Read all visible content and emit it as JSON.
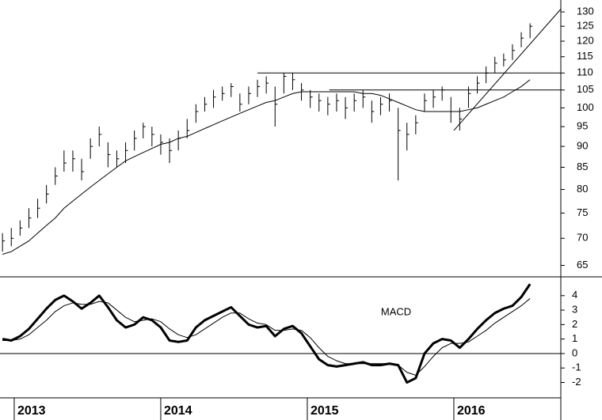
{
  "chart_data": [
    {
      "type": "ohlc",
      "log": true,
      "x": [
        2012.92,
        2012.98,
        2013.04,
        2013.1,
        2013.16,
        2013.22,
        2013.28,
        2013.34,
        2013.4,
        2013.46,
        2013.52,
        2013.58,
        2013.64,
        2013.7,
        2013.76,
        2013.82,
        2013.88,
        2013.94,
        2014.0,
        2014.06,
        2014.12,
        2014.18,
        2014.24,
        2014.3,
        2014.36,
        2014.42,
        2014.48,
        2014.54,
        2014.6,
        2014.66,
        2014.72,
        2014.78,
        2014.84,
        2014.9,
        2014.96,
        2015.02,
        2015.08,
        2015.14,
        2015.2,
        2015.26,
        2015.32,
        2015.38,
        2015.44,
        2015.5,
        2015.56,
        2015.62,
        2015.68,
        2015.74,
        2015.8,
        2015.86,
        2015.92,
        2015.98,
        2016.04,
        2016.1,
        2016.16,
        2016.22,
        2016.28,
        2016.34,
        2016.4,
        2016.46,
        2016.52
      ],
      "high": [
        71,
        72,
        73.5,
        76,
        78,
        81,
        85,
        89,
        89,
        87,
        92,
        95,
        91,
        89,
        91,
        94,
        96,
        95,
        93,
        92,
        94,
        97,
        101,
        103,
        105,
        106,
        107,
        104,
        106,
        108,
        109,
        106,
        110,
        110,
        107,
        105,
        104,
        103,
        104,
        103,
        104,
        105,
        102,
        103,
        104,
        100,
        96,
        98,
        104,
        105,
        106,
        103,
        100,
        106,
        109,
        112,
        115,
        116,
        119,
        123,
        126
      ],
      "low": [
        67.5,
        68.5,
        70.5,
        72,
        74,
        77,
        81,
        84,
        84,
        82,
        87,
        90,
        85,
        85,
        86,
        89,
        92,
        90,
        88,
        86,
        89,
        92,
        96,
        99,
        100,
        102,
        103,
        99,
        101,
        103,
        104,
        95,
        104,
        105,
        102,
        100,
        99,
        98,
        99,
        97,
        99,
        100,
        96,
        98,
        99,
        82,
        89,
        93,
        99,
        100,
        102,
        96,
        94,
        100,
        104,
        107,
        110,
        112,
        114,
        118,
        121
      ],
      "close": [
        69.5,
        70,
        72,
        74,
        76,
        79,
        83,
        86,
        87,
        84,
        90,
        93,
        88,
        87,
        89,
        92,
        95,
        93,
        91,
        89,
        92,
        94,
        99,
        101,
        103,
        104,
        106,
        101,
        104,
        106,
        107,
        101,
        109,
        108,
        105,
        103,
        102,
        101,
        102,
        100,
        102,
        103,
        99,
        101,
        102,
        94,
        93,
        96,
        102,
        103,
        105,
        99,
        97,
        104,
        107,
        110,
        113,
        114,
        117,
        121,
        125
      ],
      "moving_average": [
        67,
        67.5,
        68.5,
        69.5,
        71,
        72.5,
        74,
        76,
        77.5,
        79,
        80.5,
        82,
        83.5,
        85,
        86.5,
        87.5,
        88.5,
        89.5,
        90.5,
        91,
        92,
        92.5,
        93.5,
        94.5,
        95.5,
        96.5,
        97.5,
        98.5,
        99.5,
        100.5,
        101.5,
        102,
        103,
        104,
        104.5,
        104.5,
        104.5,
        104.5,
        104.5,
        104.5,
        104.5,
        104,
        104,
        103.5,
        102.5,
        101.5,
        100.5,
        99.5,
        99,
        99,
        99,
        99,
        99,
        99.5,
        100,
        101,
        102,
        103,
        104.5,
        106,
        108
      ],
      "lines": [
        {
          "x": [
            2014.66,
            2016.73
          ],
          "y": [
            110,
            110
          ]
        },
        {
          "x": [
            2015.15,
            2016.73
          ],
          "y": [
            105,
            105
          ]
        },
        {
          "x": [
            2016.0,
            2016.73
          ],
          "y": [
            94,
            131
          ]
        }
      ],
      "color": "#000000",
      "xlim": [
        2012.903,
        2016.73
      ],
      "ylim": [
        63,
        134.3
      ],
      "yticks": [
        65,
        70,
        75,
        80,
        85,
        90,
        95,
        100,
        105,
        110,
        115,
        120,
        125,
        130
      ]
    },
    {
      "type": "line",
      "annotation": "MACD",
      "x": [
        2012.92,
        2012.98,
        2013.04,
        2013.1,
        2013.16,
        2013.22,
        2013.28,
        2013.34,
        2013.4,
        2013.46,
        2013.52,
        2013.58,
        2013.64,
        2013.7,
        2013.76,
        2013.82,
        2013.88,
        2013.94,
        2014.0,
        2014.06,
        2014.12,
        2014.18,
        2014.24,
        2014.3,
        2014.36,
        2014.42,
        2014.48,
        2014.54,
        2014.6,
        2014.66,
        2014.72,
        2014.78,
        2014.84,
        2014.9,
        2014.96,
        2015.02,
        2015.08,
        2015.14,
        2015.2,
        2015.26,
        2015.32,
        2015.38,
        2015.44,
        2015.5,
        2015.56,
        2015.62,
        2015.68,
        2015.74,
        2015.8,
        2015.86,
        2015.92,
        2015.98,
        2016.04,
        2016.1,
        2016.16,
        2016.22,
        2016.28,
        2016.34,
        2016.4,
        2016.46,
        2016.52
      ],
      "series": [
        {
          "color": "#000000",
          "values": [
            1,
            0.9,
            1.2,
            1.7,
            2.4,
            3.1,
            3.7,
            4.0,
            3.6,
            3.1,
            3.5,
            4.0,
            3.2,
            2.3,
            1.8,
            2.0,
            2.5,
            2.3,
            1.8,
            0.9,
            0.8,
            0.9,
            1.8,
            2.3,
            2.6,
            2.9,
            3.2,
            2.6,
            2.0,
            1.8,
            1.9,
            1.2,
            1.7,
            1.9,
            1.4,
            0.5,
            -0.4,
            -0.8,
            -0.9,
            -0.8,
            -0.7,
            -0.6,
            -0.8,
            -0.8,
            -0.7,
            -0.8,
            -2.0,
            -1.7,
            0.0,
            0.7,
            1.0,
            0.9,
            0.4,
            1.0,
            1.7,
            2.3,
            2.8,
            3.1,
            3.3,
            3.9,
            4.8
          ]
        },
        {
          "color": "#000000",
          "values": [
            0.9,
            0.9,
            1.0,
            1.3,
            1.8,
            2.3,
            2.9,
            3.3,
            3.5,
            3.4,
            3.4,
            3.6,
            3.5,
            3.0,
            2.5,
            2.2,
            2.3,
            2.4,
            2.2,
            1.7,
            1.3,
            1.1,
            1.3,
            1.7,
            2.1,
            2.5,
            2.8,
            2.8,
            2.4,
            2.1,
            2.0,
            1.6,
            1.6,
            1.7,
            1.6,
            1.1,
            0.4,
            -0.2,
            -0.5,
            -0.7,
            -0.7,
            -0.7,
            -0.7,
            -0.7,
            -0.7,
            -0.8,
            -1.3,
            -1.5,
            -0.9,
            -0.2,
            0.4,
            0.7,
            0.7,
            0.8,
            1.2,
            1.6,
            2.1,
            2.5,
            2.9,
            3.3,
            3.8
          ]
        }
      ],
      "xlim": [
        2012.903,
        2016.73
      ],
      "ylim": [
        -2.9,
        5.3
      ],
      "yticks": [
        -2,
        -1,
        0,
        1,
        2,
        3,
        4
      ],
      "xticks": [
        2013,
        2014,
        2015,
        2016
      ]
    }
  ]
}
